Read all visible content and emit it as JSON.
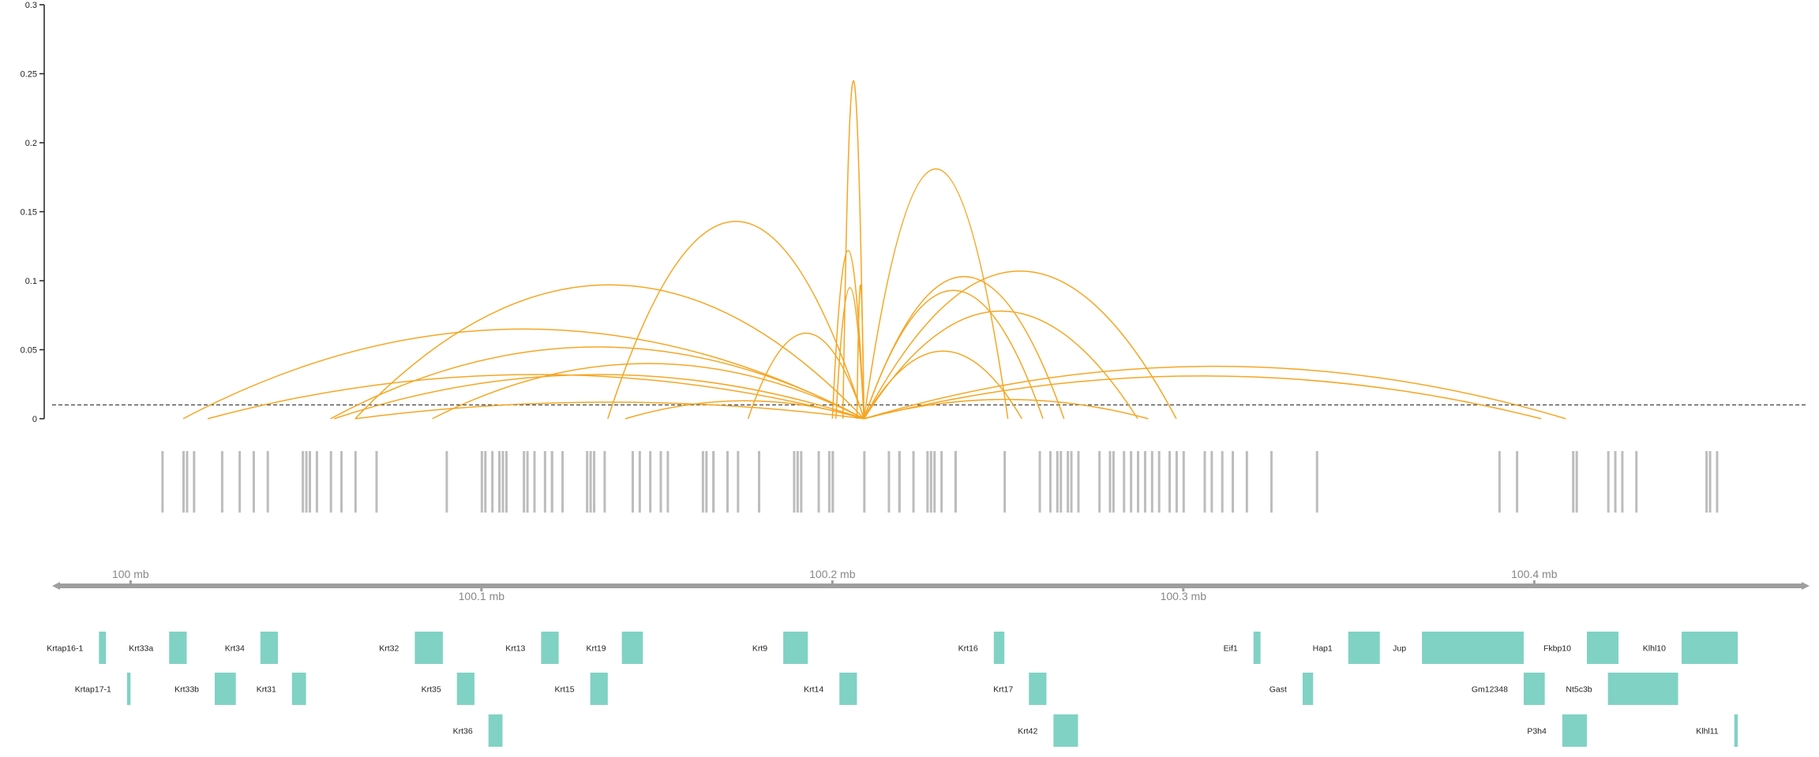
{
  "chart_data": {
    "type": "arc",
    "y_axis": {
      "ticks": [
        0,
        0.05,
        0.1,
        0.15,
        0.2,
        0.25,
        0.3
      ],
      "tick_labels": [
        "0",
        "0.05",
        "0.1",
        "0.15",
        "0.2",
        "0.25",
        "0.3"
      ],
      "ylim": [
        0,
        0.3
      ]
    },
    "threshold": 0.01,
    "x_range_mb": [
      99.979,
      100.478
    ],
    "genome_axis": {
      "upper_ticks": [
        {
          "pos": 100.0,
          "label": "100 mb"
        },
        {
          "pos": 100.2,
          "label": "100.2 mb"
        },
        {
          "pos": 100.4,
          "label": "100.4 mb"
        }
      ],
      "lower_ticks": [
        {
          "pos": 100.1,
          "label": "100.1 mb"
        },
        {
          "pos": 100.3,
          "label": "100.3 mb"
        }
      ]
    },
    "arcs": [
      {
        "start": 100.015,
        "end": 100.209,
        "peak": 0.065
      },
      {
        "start": 100.022,
        "end": 100.209,
        "peak": 0.032
      },
      {
        "start": 100.057,
        "end": 100.209,
        "peak": 0.052
      },
      {
        "start": 100.058,
        "end": 100.209,
        "peak": 0.032
      },
      {
        "start": 100.064,
        "end": 100.209,
        "peak": 0.097
      },
      {
        "start": 100.064,
        "end": 100.209,
        "peak": 0.012
      },
      {
        "start": 100.086,
        "end": 100.209,
        "peak": 0.04
      },
      {
        "start": 100.136,
        "end": 100.209,
        "peak": 0.143
      },
      {
        "start": 100.141,
        "end": 100.209,
        "peak": 0.013
      },
      {
        "start": 100.176,
        "end": 100.209,
        "peak": 0.062
      },
      {
        "start": 100.2,
        "end": 100.209,
        "peak": 0.122
      },
      {
        "start": 100.201,
        "end": 100.209,
        "peak": 0.095
      },
      {
        "start": 100.203,
        "end": 100.209,
        "peak": 0.245
      },
      {
        "start": 100.209,
        "end": 100.207,
        "peak": 0.097
      },
      {
        "start": 100.209,
        "end": 100.25,
        "peak": 0.181
      },
      {
        "start": 100.209,
        "end": 100.254,
        "peak": 0.049
      },
      {
        "start": 100.209,
        "end": 100.26,
        "peak": 0.093
      },
      {
        "start": 100.209,
        "end": 100.266,
        "peak": 0.103
      },
      {
        "start": 100.209,
        "end": 100.287,
        "peak": 0.078
      },
      {
        "start": 100.209,
        "end": 100.298,
        "peak": 0.107
      },
      {
        "start": 100.209,
        "end": 100.29,
        "peak": 0.014
      },
      {
        "start": 100.209,
        "end": 100.409,
        "peak": 0.038
      },
      {
        "start": 100.209,
        "end": 100.402,
        "peak": 0.031
      }
    ],
    "snps": [
      100.009,
      100.015,
      100.016,
      100.018,
      100.026,
      100.031,
      100.035,
      100.039,
      100.049,
      100.05,
      100.051,
      100.053,
      100.057,
      100.06,
      100.064,
      100.07,
      100.09,
      100.1,
      100.101,
      100.103,
      100.105,
      100.106,
      100.107,
      100.112,
      100.113,
      100.115,
      100.118,
      100.12,
      100.12,
      100.123,
      100.13,
      100.131,
      100.132,
      100.135,
      100.143,
      100.145,
      100.148,
      100.151,
      100.153,
      100.163,
      100.164,
      100.166,
      100.166,
      100.17,
      100.17,
      100.173,
      100.179,
      100.189,
      100.19,
      100.191,
      100.196,
      100.199,
      100.2,
      100.2,
      100.209,
      100.216,
      100.219,
      100.219,
      100.223,
      100.227,
      100.228,
      100.229,
      100.231,
      100.235,
      100.235,
      100.249,
      100.259,
      100.262,
      100.264,
      100.265,
      100.267,
      100.268,
      100.27,
      100.276,
      100.279,
      100.28,
      100.283,
      100.285,
      100.287,
      100.289,
      100.291,
      100.293,
      100.296,
      100.298,
      100.3,
      100.306,
      100.308,
      100.311,
      100.314,
      100.318,
      100.325,
      100.338,
      100.39,
      100.395,
      100.411,
      100.412,
      100.421,
      100.423,
      100.425,
      100.429,
      100.449,
      100.45,
      100.452
    ],
    "genes": [
      {
        "name": "Krtap16-1",
        "start": 99.991,
        "end": 99.993,
        "row": 0
      },
      {
        "name": "Krtap17-1",
        "start": 99.999,
        "end": 100.0,
        "row": 1
      },
      {
        "name": "Krt33a",
        "start": 100.011,
        "end": 100.016,
        "row": 0
      },
      {
        "name": "Krt33b",
        "start": 100.024,
        "end": 100.03,
        "row": 1
      },
      {
        "name": "Krt34",
        "start": 100.037,
        "end": 100.042,
        "row": 0
      },
      {
        "name": "Krt31",
        "start": 100.046,
        "end": 100.05,
        "row": 1
      },
      {
        "name": "Krt32",
        "start": 100.081,
        "end": 100.089,
        "row": 0
      },
      {
        "name": "Krt35",
        "start": 100.093,
        "end": 100.098,
        "row": 1
      },
      {
        "name": "Krt36",
        "start": 100.102,
        "end": 100.106,
        "row": 2
      },
      {
        "name": "Krt13",
        "start": 100.117,
        "end": 100.122,
        "row": 0
      },
      {
        "name": "Krt15",
        "start": 100.131,
        "end": 100.136,
        "row": 1
      },
      {
        "name": "Krt19",
        "start": 100.14,
        "end": 100.146,
        "row": 0
      },
      {
        "name": "Krt9",
        "start": 100.186,
        "end": 100.193,
        "row": 0
      },
      {
        "name": "Krt14",
        "start": 100.202,
        "end": 100.207,
        "row": 1
      },
      {
        "name": "Krt16",
        "start": 100.246,
        "end": 100.249,
        "row": 0
      },
      {
        "name": "Krt17",
        "start": 100.256,
        "end": 100.261,
        "row": 1
      },
      {
        "name": "Krt42",
        "start": 100.263,
        "end": 100.27,
        "row": 2
      },
      {
        "name": "Eif1",
        "start": 100.32,
        "end": 100.322,
        "row": 0
      },
      {
        "name": "Gast",
        "start": 100.334,
        "end": 100.337,
        "row": 1
      },
      {
        "name": "Hap1",
        "start": 100.347,
        "end": 100.356,
        "row": 0
      },
      {
        "name": "Jup",
        "start": 100.368,
        "end": 100.397,
        "row": 0
      },
      {
        "name": "Gm12348",
        "start": 100.397,
        "end": 100.403,
        "row": 1
      },
      {
        "name": "P3h4",
        "start": 100.408,
        "end": 100.415,
        "row": 2
      },
      {
        "name": "Fkbp10",
        "start": 100.415,
        "end": 100.424,
        "row": 0
      },
      {
        "name": "Nt5c3b",
        "start": 100.421,
        "end": 100.441,
        "row": 1
      },
      {
        "name": "Klhl10",
        "start": 100.442,
        "end": 100.458,
        "row": 0
      },
      {
        "name": "Klhl11",
        "start": 100.457,
        "end": 100.458,
        "row": 2
      }
    ],
    "colors": {
      "arc": "#f5a623",
      "snp": "#bdbdbd",
      "gene": "#80d2c4",
      "axis": "#9e9e9e",
      "threshold": "#444444"
    }
  }
}
